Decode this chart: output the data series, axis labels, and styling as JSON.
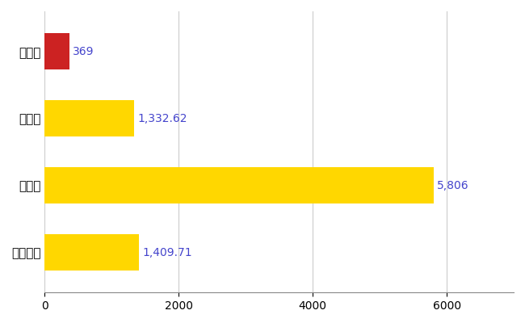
{
  "categories": [
    "全国平均",
    "県最大",
    "県平均",
    "紀北町"
  ],
  "values": [
    1409.71,
    5806,
    1332.62,
    369
  ],
  "bar_colors": [
    "#FFD700",
    "#FFD700",
    "#FFD700",
    "#CC2222"
  ],
  "value_labels": [
    "1,409.71",
    "5,806",
    "1,332.62",
    "369"
  ],
  "xlabel": "",
  "ylabel": "",
  "xlim": [
    0,
    7000
  ],
  "grid_color": "#cccccc",
  "label_color": "#4444cc",
  "background_color": "#ffffff",
  "bar_height": 0.55,
  "label_fontsize": 10,
  "tick_fontsize": 10
}
